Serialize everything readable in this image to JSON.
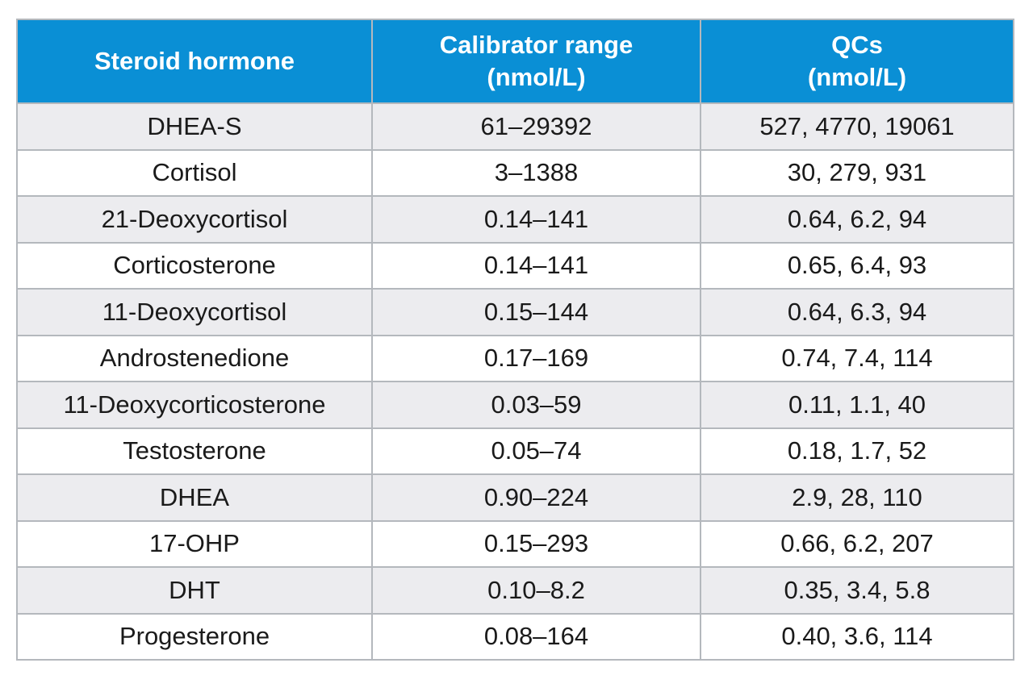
{
  "table": {
    "headers": [
      {
        "lines": [
          "Steroid hormone"
        ]
      },
      {
        "lines": [
          "Calibrator range",
          "(nmol/L)"
        ]
      },
      {
        "lines": [
          "QCs",
          "(nmol/L)"
        ]
      }
    ],
    "rows": [
      {
        "hormone": "DHEA-S",
        "range": "61–29392",
        "qcs": "527, 4770, 19061"
      },
      {
        "hormone": "Cortisol",
        "range": "3–1388",
        "qcs": "30, 279, 931"
      },
      {
        "hormone": "21-Deoxycortisol",
        "range": "0.14–141",
        "qcs": "0.64, 6.2, 94"
      },
      {
        "hormone": "Corticosterone",
        "range": "0.14–141",
        "qcs": "0.65, 6.4, 93"
      },
      {
        "hormone": "11-Deoxycortisol",
        "range": "0.15–144",
        "qcs": "0.64, 6.3, 94"
      },
      {
        "hormone": "Androstenedione",
        "range": "0.17–169",
        "qcs": "0.74, 7.4, 114"
      },
      {
        "hormone": "11-Deoxycorticosterone",
        "range": "0.03–59",
        "qcs": "0.11, 1.1, 40"
      },
      {
        "hormone": "Testosterone",
        "range": "0.05–74",
        "qcs": "0.18, 1.7, 52"
      },
      {
        "hormone": "DHEA",
        "range": "0.90–224",
        "qcs": "2.9, 28, 110"
      },
      {
        "hormone": "17-OHP",
        "range": "0.15–293",
        "qcs": "0.66, 6.2, 207"
      },
      {
        "hormone": "DHT",
        "range": "0.10–8.2",
        "qcs": "0.35, 3.4, 5.8"
      },
      {
        "hormone": "Progesterone",
        "range": "0.08–164",
        "qcs": "0.40, 3.6, 114"
      }
    ],
    "colors": {
      "header_bg": "#0a8fd5",
      "header_text": "#ffffff",
      "row_odd_bg": "#ececef",
      "row_even_bg": "#ffffff",
      "border": "#b4b8bd"
    }
  }
}
